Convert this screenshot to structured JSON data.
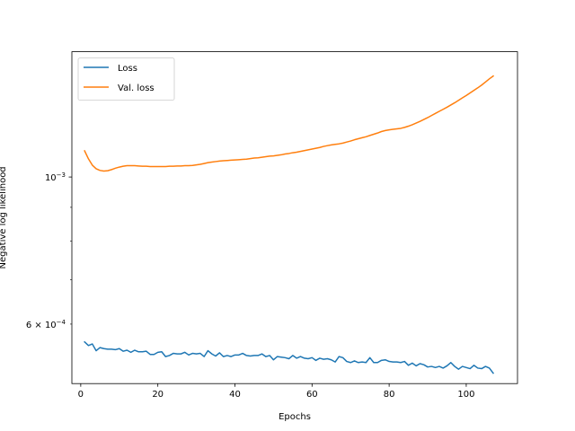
{
  "chart_data": {
    "type": "line",
    "title": "",
    "xlabel": "Epochs",
    "ylabel": "Negative log likelihood",
    "yscale": "log",
    "xlim": [
      -2.3,
      113.3
    ],
    "ylim": [
      0.000488,
      0.001545
    ],
    "x_ticks": [
      0,
      20,
      40,
      60,
      80,
      100
    ],
    "x_tick_labels": [
      "0",
      "20",
      "40",
      "60",
      "80",
      "100"
    ],
    "y_major_ticks": [
      0.001
    ],
    "y_major_tick_labels": [
      "10−3"
    ],
    "y_minor_ticks": [
      0.0006,
      0.0007,
      0.0008,
      0.0009
    ],
    "y_minor_tick_labels": [
      "6 × 10−4",
      "",
      "",
      ""
    ],
    "grid": false,
    "legend_position": "upper-left",
    "series": [
      {
        "name": "Loss",
        "color": "#1f77b4",
        "x_start": 1,
        "values": [
          0.000564,
          0.000557,
          0.00056,
          0.000547,
          0.000553,
          0.000551,
          0.00055,
          0.00055,
          0.000549,
          0.000551,
          0.000546,
          0.000548,
          0.000544,
          0.000548,
          0.000545,
          0.000545,
          0.000546,
          0.00054,
          0.00054,
          0.000544,
          0.000545,
          0.000536,
          0.000538,
          0.000542,
          0.000541,
          0.000541,
          0.000544,
          0.000539,
          0.000542,
          0.000541,
          0.000542,
          0.000536,
          0.000547,
          0.000541,
          0.000537,
          0.000543,
          0.000536,
          0.000538,
          0.000536,
          0.000539,
          0.000539,
          0.000542,
          0.000538,
          0.000537,
          0.000538,
          0.000538,
          0.000541,
          0.000536,
          0.000538,
          0.00053,
          0.000536,
          0.000535,
          0.000534,
          0.000532,
          0.000538,
          0.000533,
          0.000536,
          0.000533,
          0.000532,
          0.000534,
          0.000529,
          0.000533,
          0.000531,
          0.000532,
          0.00053,
          0.000526,
          0.000536,
          0.000534,
          0.000527,
          0.000525,
          0.000528,
          0.000525,
          0.000526,
          0.000525,
          0.000534,
          0.000525,
          0.000525,
          0.000529,
          0.00053,
          0.000527,
          0.000526,
          0.000526,
          0.000525,
          0.000527,
          0.00052,
          0.000524,
          0.000519,
          0.000523,
          0.000521,
          0.000517,
          0.000518,
          0.000516,
          0.000518,
          0.000515,
          0.000519,
          0.000525,
          0.000518,
          0.000513,
          0.000518,
          0.000516,
          0.000514,
          0.00052,
          0.000515,
          0.000514,
          0.000518,
          0.000515,
          0.000506
        ]
      },
      {
        "name": "Val. loss",
        "color": "#ff7f0e",
        "x_start": 1,
        "values": [
          0.001095,
          0.001065,
          0.001042,
          0.001029,
          0.001023,
          0.001021,
          0.001022,
          0.001026,
          0.001031,
          0.001035,
          0.001038,
          0.00104,
          0.00104,
          0.00104,
          0.001039,
          0.001038,
          0.001038,
          0.001037,
          0.001037,
          0.001037,
          0.001037,
          0.001037,
          0.001038,
          0.001038,
          0.001039,
          0.001039,
          0.00104,
          0.00104,
          0.001041,
          0.001043,
          0.001045,
          0.001048,
          0.001051,
          0.001053,
          0.001055,
          0.001057,
          0.001058,
          0.001059,
          0.00106,
          0.001061,
          0.001062,
          0.001063,
          0.001064,
          0.001066,
          0.001068,
          0.001069,
          0.001071,
          0.001073,
          0.001075,
          0.001076,
          0.001078,
          0.00108,
          0.001083,
          0.001085,
          0.001088,
          0.00109,
          0.001093,
          0.001096,
          0.001099,
          0.001102,
          0.001105,
          0.001108,
          0.001112,
          0.001115,
          0.001118,
          0.00112,
          0.001122,
          0.001125,
          0.001129,
          0.001133,
          0.001138,
          0.001142,
          0.001146,
          0.00115,
          0.001155,
          0.00116,
          0.001165,
          0.001171,
          0.001175,
          0.001178,
          0.00118,
          0.001182,
          0.001184,
          0.001188,
          0.001193,
          0.001199,
          0.001206,
          0.001213,
          0.001221,
          0.001229,
          0.001238,
          0.001247,
          0.001256,
          0.001265,
          0.001274,
          0.001284,
          0.001294,
          0.001305,
          0.001316,
          0.001327,
          0.001339,
          0.001351,
          0.001363,
          0.001376,
          0.001391,
          0.001406,
          0.00142
        ]
      }
    ]
  }
}
